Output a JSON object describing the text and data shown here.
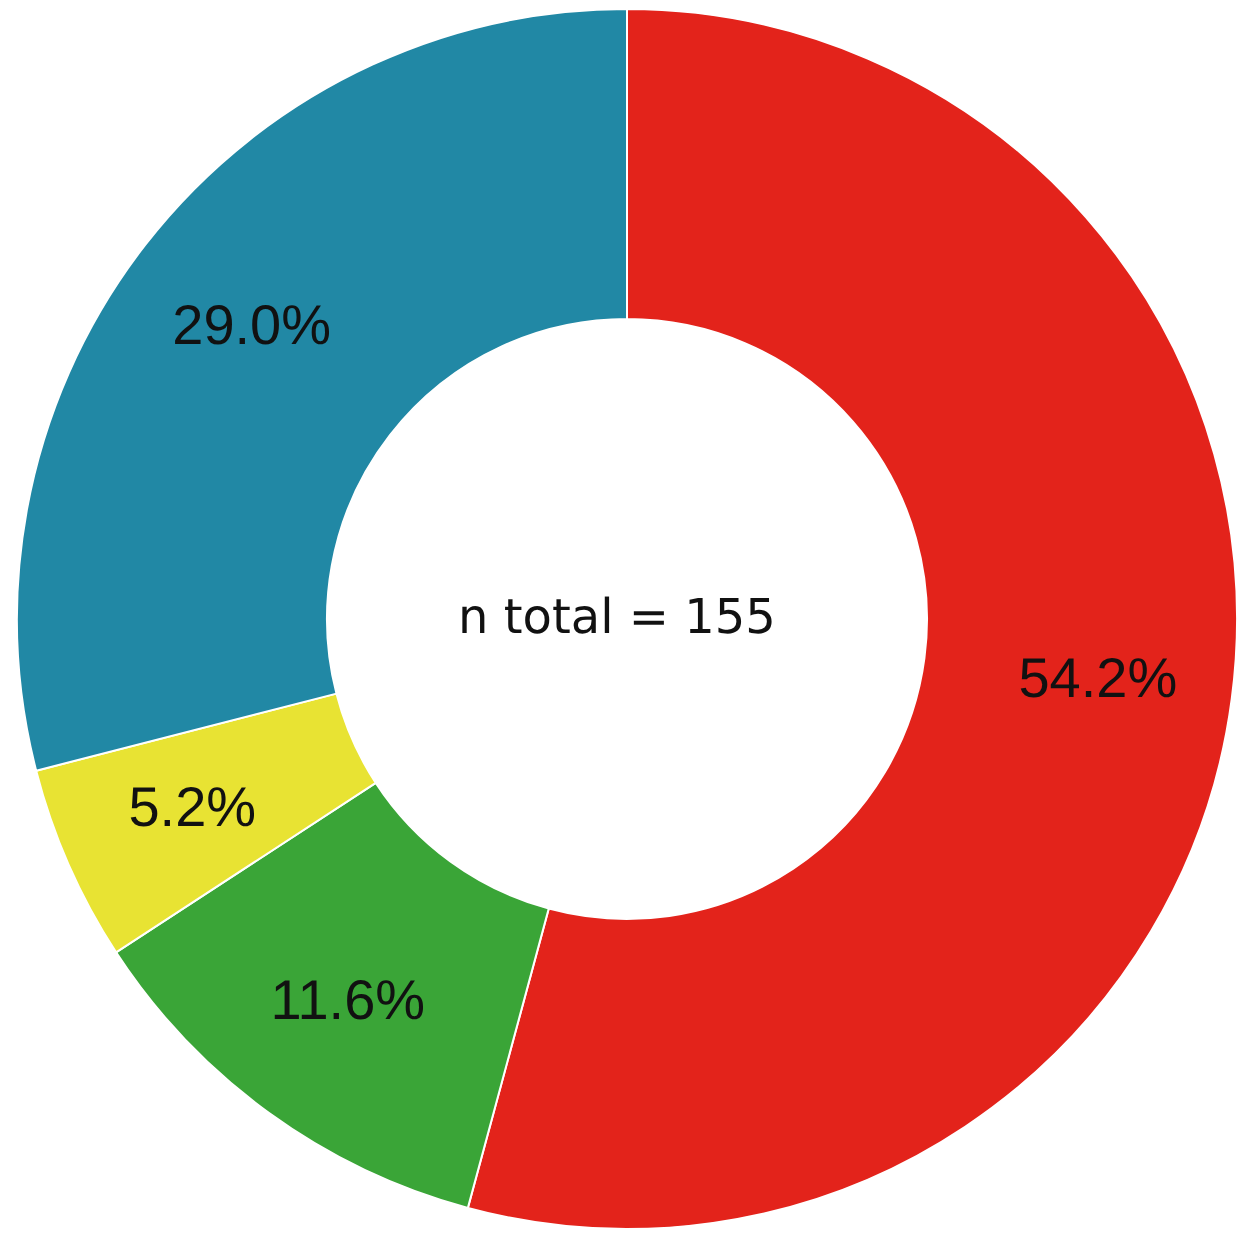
{
  "chart_data": {
    "type": "donut",
    "categories": [
      null,
      null,
      null,
      null
    ],
    "values": [
      54.2,
      11.6,
      5.2,
      29.0
    ],
    "colors": [
      "#e3231b",
      "#3aa537",
      "#e8e333",
      "#2188a5"
    ],
    "value_labels": [
      "54.2%",
      "11.6%",
      "5.2%",
      "29.0%"
    ],
    "annotations": [
      "n total = 155"
    ]
  }
}
